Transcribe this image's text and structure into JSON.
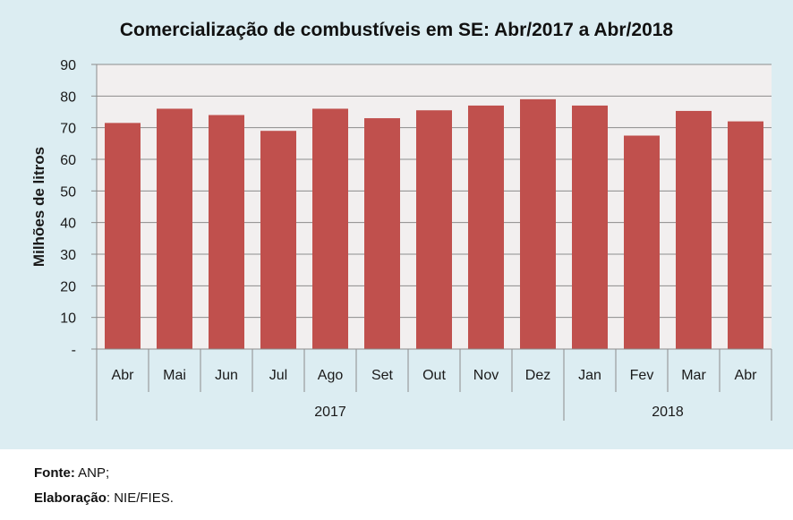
{
  "chart_data": {
    "type": "bar",
    "title": "Comercialização de combustíveis em SE: Abr/2017 a Abr/2018",
    "ylabel": "Milhões de litros",
    "xlabel": "",
    "ylim": [
      0,
      90
    ],
    "yticks": [
      0,
      10,
      20,
      30,
      40,
      50,
      60,
      70,
      80,
      90
    ],
    "ytick_labels": [
      "-",
      "10",
      "20",
      "30",
      "40",
      "50",
      "60",
      "70",
      "80",
      "90"
    ],
    "categories": [
      "Abr",
      "Mai",
      "Jun",
      "Jul",
      "Ago",
      "Set",
      "Out",
      "Nov",
      "Dez",
      "Jan",
      "Fev",
      "Mar",
      "Abr"
    ],
    "values": [
      71.5,
      76,
      74,
      69,
      76,
      73,
      75.5,
      77,
      79,
      77,
      67.5,
      75.3,
      72
    ],
    "groups": [
      {
        "label": "2017",
        "count": 9
      },
      {
        "label": "2018",
        "count": 4
      }
    ],
    "bar_color": "#c0504d",
    "plot_background": "#f2efef",
    "grid": true,
    "legend": "none"
  },
  "footer": {
    "source_key": "Fonte:",
    "source_value": " ANP;",
    "elab_key": "Elaboração",
    "elab_value": ": NIE/FIES."
  }
}
